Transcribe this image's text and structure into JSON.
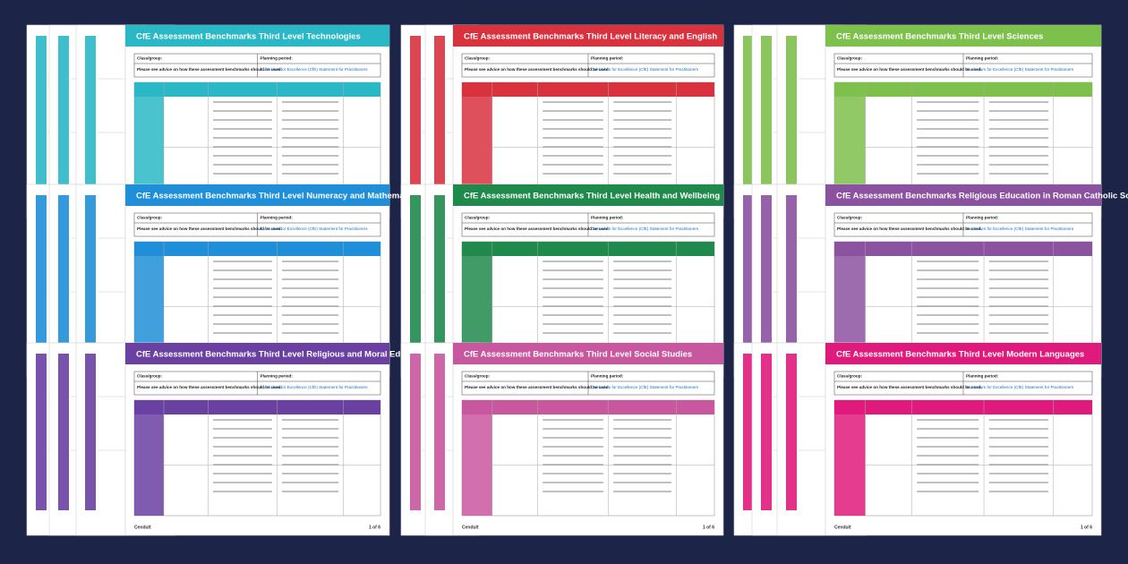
{
  "brand": "Cendult",
  "page_label": "1 of 6",
  "form": {
    "class_group": "Class/group:",
    "planning_period": "Planning period:",
    "advice": "Please see advice on how these assessment benchmarks should be used.",
    "link": "Curriculum for Excellence (CfE) Statement for Practitioners"
  },
  "documents": [
    {
      "title": "CfE Assessment Benchmarks Third Level Technologies",
      "color": "#2ab8c6"
    },
    {
      "title": "CfE Assessment Benchmarks Third Level Literacy and English",
      "color": "#d8323f"
    },
    {
      "title": "CfE Assessment Benchmarks Third Level Sciences",
      "color": "#7dc04b"
    },
    {
      "title": "CfE Assessment Benchmarks Third Level Numeracy and Mathematics",
      "color": "#1e8fd8"
    },
    {
      "title": "CfE Assessment Benchmarks Third Level Health and Wellbeing",
      "color": "#1f8a4c"
    },
    {
      "title": "CfE Assessment Benchmarks Religious Education in Roman Catholic Schools",
      "color": "#8b52a0"
    },
    {
      "title": "CfE Assessment Benchmarks Third Level Religious and Moral Education",
      "color": "#6a40a2"
    },
    {
      "title": "CfE Assessment Benchmarks Third Level Social Studies",
      "color": "#c9579f"
    },
    {
      "title": "CfE Assessment Benchmarks Third Level Modern Languages",
      "color": "#e01a7c"
    }
  ]
}
